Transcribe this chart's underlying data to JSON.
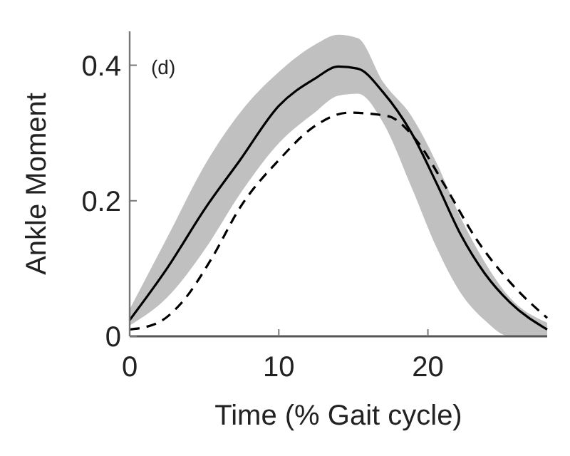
{
  "chart_data": {
    "type": "line",
    "xlabel": "Time (% Gait cycle)",
    "ylabel": "Ankle Moment",
    "annotations": [
      "(d)"
    ],
    "xlim": [
      0,
      28
    ],
    "ylim": [
      0,
      0.45
    ],
    "xticks": [
      0,
      10,
      20
    ],
    "yticks": [
      0,
      0.2,
      0.4
    ],
    "grid": false,
    "marker": "none",
    "series": [
      {
        "color": "#000000",
        "line_style": "solid",
        "x": [
          0,
          2.5,
          5.1,
          7.4,
          10,
          12.4,
          14,
          15.3,
          17,
          18.9,
          20.6,
          22.2,
          23.8,
          25.5,
          28
        ],
        "values": [
          0.024,
          0.1,
          0.19,
          0.26,
          0.34,
          0.38,
          0.398,
          0.395,
          0.36,
          0.3,
          0.225,
          0.15,
          0.093,
          0.05,
          0.01
        ],
        "lower": [
          0.016,
          0.057,
          0.13,
          0.21,
          0.285,
          0.33,
          0.355,
          0.358,
          0.315,
          0.22,
          0.13,
          0.064,
          0.024,
          0,
          0
        ],
        "upper": [
          0.04,
          0.145,
          0.255,
          0.33,
          0.39,
          0.43,
          0.445,
          0.44,
          0.375,
          0.325,
          0.255,
          0.175,
          0.11,
          0.057,
          0.02
        ]
      },
      {
        "color": "#000000",
        "line_style": "dashed",
        "x": [
          0,
          1.9,
          3.5,
          5.5,
          7.4,
          10,
          12.4,
          14.7,
          17.3,
          19.2,
          21.2,
          23.2,
          25.5,
          28
        ],
        "values": [
          0.01,
          0.02,
          0.05,
          0.115,
          0.19,
          0.26,
          0.31,
          0.33,
          0.325,
          0.29,
          0.22,
          0.145,
          0.08,
          0.027
        ]
      }
    ]
  }
}
